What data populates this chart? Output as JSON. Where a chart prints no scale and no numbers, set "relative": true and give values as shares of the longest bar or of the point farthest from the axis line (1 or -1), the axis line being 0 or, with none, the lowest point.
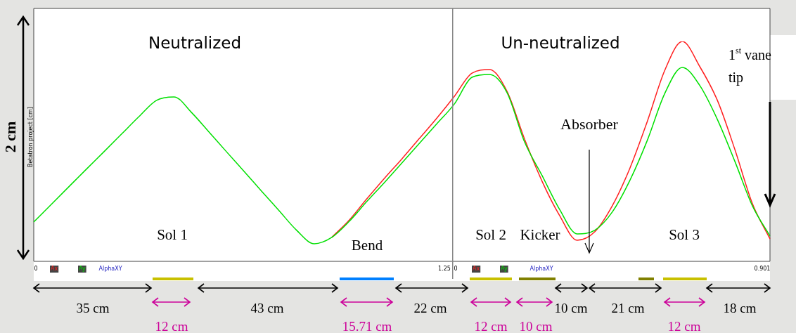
{
  "chart_data": {
    "type": "line",
    "ylabel": "2 cm",
    "relative": true,
    "legend": "bottom left",
    "marker": "none",
    "line_style": "solid",
    "categories": [
      null,
      null,
      null,
      null,
      null,
      null,
      null,
      null,
      null,
      null,
      null,
      null,
      null,
      null,
      null,
      null,
      null,
      null,
      null,
      null,
      null,
      null,
      null,
      null,
      null,
      null,
      null,
      null,
      null,
      null,
      null,
      null,
      null,
      null,
      null,
      null,
      null,
      null,
      null,
      null,
      null,
      null,
      null
    ],
    "series": [
      {
        "name": "Ay",
        "color": "#00e000",
        "values": [
          0.179,
          0.259,
          0.339,
          0.419,
          0.498,
          0.578,
          0.658,
          0.732,
          0.748,
          0.677,
          0.588,
          0.498,
          0.409,
          0.319,
          0.23,
          0.141,
          0.08,
          0.109,
          0.182,
          0.272,
          0.358,
          0.447,
          0.537,
          0.626,
          0.716,
          0.837,
          0.85,
          0.767,
          0.543,
          0.39,
          0.236,
          0.125,
          0.141,
          0.224,
          0.367,
          0.55,
          0.764,
          0.882,
          0.799,
          0.645,
          0.454,
          0.252,
          0.115
        ]
      },
      {
        "name": "Ax",
        "color": "#ff2020",
        "values": [
          null,
          null,
          null,
          null,
          null,
          null,
          null,
          null,
          null,
          null,
          null,
          null,
          null,
          null,
          null,
          null,
          null,
          0.109,
          0.188,
          0.284,
          0.377,
          0.466,
          0.559,
          0.652,
          0.751,
          0.856,
          0.872,
          0.773,
          0.556,
          0.364,
          0.208,
          0.096,
          0.134,
          0.252,
          0.422,
          0.636,
          0.869,
          1,
          0.885,
          0.732,
          0.508,
          0.262,
          0.102
        ]
      }
    ],
    "annotations": [
      "Neutralized",
      "Un-neutralized",
      "1$^{st}$ vane tip",
      "Absorber",
      "Sol 1",
      "Bend",
      "Sol 2",
      "Kicker",
      "Sol 3",
      "35 cm",
      "12 cm",
      "43 cm",
      "15.71 cm",
      "22 cm",
      "12 cm",
      "10 cm",
      "10 cm",
      "21 cm",
      "12 cm",
      "18 cm",
      "0",
      "1.25",
      "0",
      "0.901",
      "AlphaXY",
      "AlphaXY",
      "Betatron project [cm]"
    ]
  }
}
